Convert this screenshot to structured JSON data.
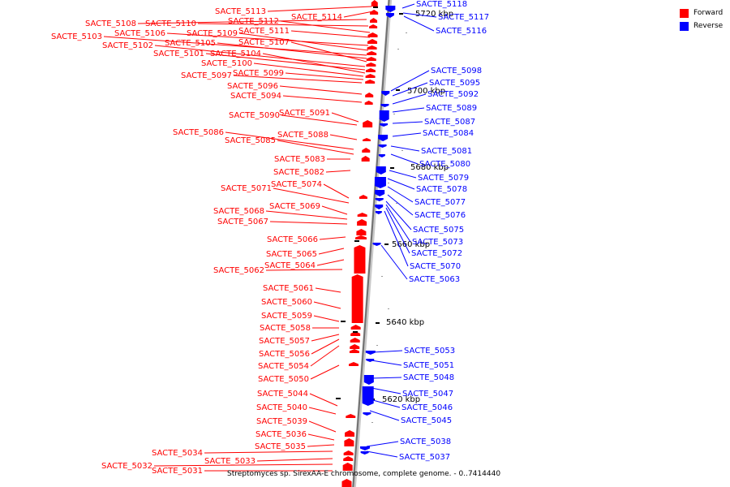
{
  "caption": "Streptomyces sp. SirexAA-E chromosome, complete genome. - 0..7414440",
  "legend": [
    {
      "label": "Forward",
      "color": "#ff0000"
    },
    {
      "label": "Reverse",
      "color": "#0000ff"
    }
  ],
  "scale_labels": [
    "5720 kbp",
    "5700 kbp",
    "5680 kbp",
    "5660 kbp",
    "5640 kbp",
    "5620 kbp"
  ],
  "forward_genes": [
    "SACTE_5113",
    "SACTE_5114",
    "SACTE_5108",
    "SACTE_5110",
    "SACTE_5112",
    "SACTE_5111",
    "SACTE_5106",
    "SACTE_5109",
    "SACTE_5103",
    "SACTE_5105",
    "SACTE_5107",
    "SACTE_5102",
    "SACTE_5101",
    "SACTE_5104",
    "SACTE_5100",
    "SACTE_5099",
    "SACTE_5097",
    "SACTE_5096",
    "SACTE_5094",
    "SACTE_5091",
    "SACTE_5090",
    "SACTE_5088",
    "SACTE_5086",
    "SACTE_5085",
    "SACTE_5083",
    "SACTE_5082",
    "SACTE_5074",
    "SACTE_5071",
    "SACTE_5069",
    "SACTE_5068",
    "SACTE_5067",
    "SACTE_5066",
    "SACTE_5065",
    "SACTE_5064",
    "SACTE_5062",
    "SACTE_5061",
    "SACTE_5060",
    "SACTE_5059",
    "SACTE_5058",
    "SACTE_5057",
    "SACTE_5056",
    "SACTE_5054",
    "SACTE_5050",
    "SACTE_5044",
    "SACTE_5040",
    "SACTE_5039",
    "SACTE_5036",
    "SACTE_5035",
    "SACTE_5034",
    "SACTE_5033",
    "SACTE_5032",
    "SACTE_5031"
  ],
  "reverse_genes": [
    "SACTE_5118",
    "SACTE_5117",
    "SACTE_5116",
    "SACTE_5098",
    "SACTE_5095",
    "SACTE_5092",
    "SACTE_5089",
    "SACTE_5087",
    "SACTE_5084",
    "SACTE_5081",
    "SACTE_5080",
    "SACTE_5079",
    "SACTE_5078",
    "SACTE_5077",
    "SACTE_5076",
    "SACTE_5075",
    "SACTE_5073",
    "SACTE_5072",
    "SACTE_5070",
    "SACTE_5063",
    "SACTE_5053",
    "SACTE_5051",
    "SACTE_5048",
    "SACTE_5047",
    "SACTE_5046",
    "SACTE_5045",
    "SACTE_5038",
    "SACTE_5037"
  ]
}
